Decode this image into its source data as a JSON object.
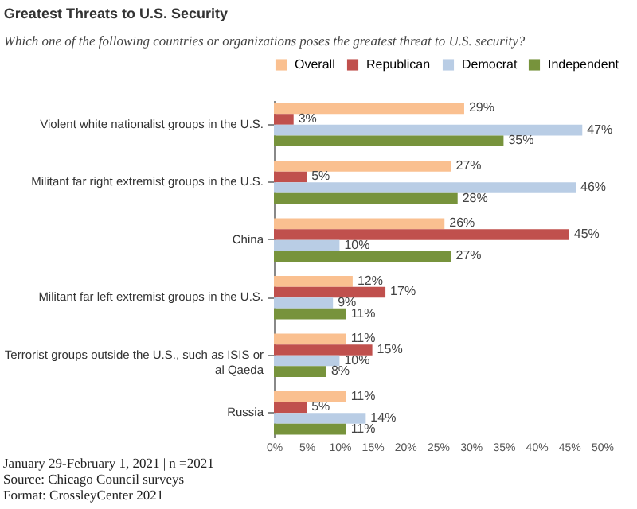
{
  "chart_data": {
    "type": "bar",
    "orientation": "horizontal",
    "title": "Greatest Threats to U.S. Security",
    "subtitle": "Which one of the following countries or organizations poses the greatest threat to U.S. security?",
    "categories": [
      "Violent white nationalist groups in the U.S.",
      "Militant far right extremist groups in the U.S.",
      "China",
      "Militant far left extremist groups in the U.S.",
      "Terrorist groups outside the U.S., such as ISIS or al Qaeda",
      "Russia"
    ],
    "series": [
      {
        "name": "Overall",
        "color": "#fac090",
        "values": [
          29,
          27,
          26,
          12,
          11,
          11
        ],
        "value_labels": [
          "29%",
          "27%",
          "26%",
          "12%",
          "11%",
          "11%"
        ]
      },
      {
        "name": "Republican",
        "color": "#c0504d",
        "values": [
          3,
          5,
          45,
          17,
          15,
          5
        ],
        "value_labels": [
          "3%",
          "5%",
          "45%",
          "17%",
          "15%",
          "5%"
        ]
      },
      {
        "name": "Democrat",
        "color": "#b9cde5",
        "values": [
          47,
          46,
          10,
          9,
          10,
          14
        ],
        "value_labels": [
          "47%",
          "46%",
          "10%",
          "9%",
          "10%",
          "14%"
        ]
      },
      {
        "name": "Independent",
        "color": "#77933c",
        "values": [
          35,
          28,
          27,
          11,
          8,
          11
        ],
        "value_labels": [
          "35%",
          "28%",
          "27%",
          "11%",
          "8%",
          "11%"
        ]
      }
    ],
    "xlim": [
      0,
      50
    ],
    "xticks": [
      {
        "value": 0,
        "label": "0%"
      },
      {
        "value": 5,
        "label": "5%"
      },
      {
        "value": 10,
        "label": "10%"
      },
      {
        "value": 15,
        "label": "15%"
      },
      {
        "value": 20,
        "label": "20%"
      },
      {
        "value": 25,
        "label": "25%"
      },
      {
        "value": 30,
        "label": "30%"
      },
      {
        "value": 35,
        "label": "35%"
      },
      {
        "value": 40,
        "label": "40%"
      },
      {
        "value": 45,
        "label": "45%"
      },
      {
        "value": 50,
        "label": "50%"
      }
    ],
    "grid": false,
    "legend": "top",
    "annotations": [
      "January 29-February 1, 2021 | n =2021",
      "Source: Chicago Council surveys",
      "Format: CrossleyCenter 2021"
    ]
  }
}
